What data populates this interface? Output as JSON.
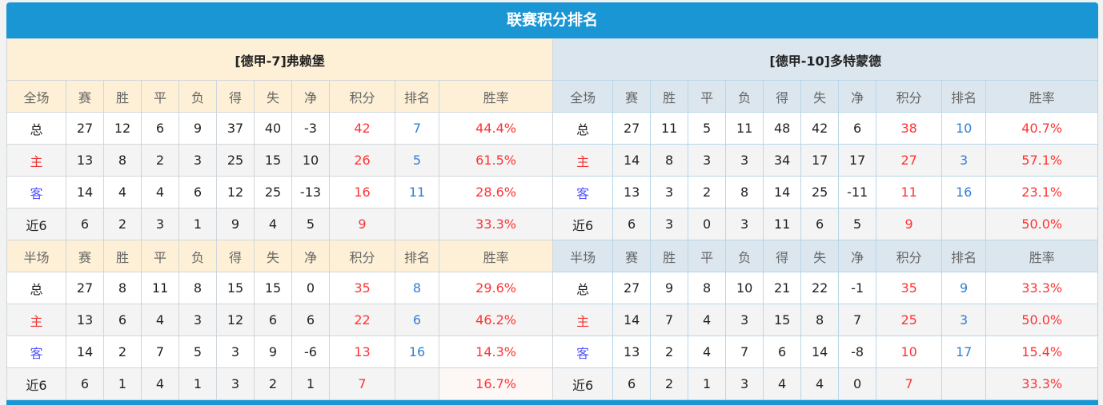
{
  "title": "联赛积分排名",
  "colors": {
    "header_bar": "#1a96d5",
    "home_header": "#fdf0d6",
    "away_header": "#dce6ee",
    "points": "#ff3333",
    "rank": "#2f7fd2"
  },
  "teams": [
    {
      "label": "[德甲-7]弗赖堡"
    },
    {
      "label": "[德甲-10]多特蒙德"
    }
  ],
  "columns_full": [
    "全场",
    "赛",
    "胜",
    "平",
    "负",
    "得",
    "失",
    "净",
    "积分",
    "排名",
    "胜率"
  ],
  "columns_half": [
    "半场",
    "赛",
    "胜",
    "平",
    "负",
    "得",
    "失",
    "净",
    "积分",
    "排名",
    "胜率"
  ],
  "full": {
    "home": [
      [
        "总",
        "27",
        "12",
        "6",
        "9",
        "37",
        "40",
        "-3",
        "42",
        "7",
        "44.4%"
      ],
      [
        "主",
        "13",
        "8",
        "2",
        "3",
        "25",
        "15",
        "10",
        "26",
        "5",
        "61.5%"
      ],
      [
        "客",
        "14",
        "4",
        "4",
        "6",
        "12",
        "25",
        "-13",
        "16",
        "11",
        "28.6%"
      ],
      [
        "近6",
        "6",
        "2",
        "3",
        "1",
        "9",
        "4",
        "5",
        "9",
        "",
        "33.3%"
      ]
    ],
    "away": [
      [
        "总",
        "27",
        "11",
        "5",
        "11",
        "48",
        "42",
        "6",
        "38",
        "10",
        "40.7%"
      ],
      [
        "主",
        "14",
        "8",
        "3",
        "3",
        "34",
        "17",
        "17",
        "27",
        "3",
        "57.1%"
      ],
      [
        "客",
        "13",
        "3",
        "2",
        "8",
        "14",
        "25",
        "-11",
        "11",
        "16",
        "23.1%"
      ],
      [
        "近6",
        "6",
        "3",
        "0",
        "3",
        "11",
        "6",
        "5",
        "9",
        "",
        "50.0%"
      ]
    ]
  },
  "half": {
    "home": [
      [
        "总",
        "27",
        "8",
        "11",
        "8",
        "15",
        "15",
        "0",
        "35",
        "8",
        "29.6%"
      ],
      [
        "主",
        "13",
        "6",
        "4",
        "3",
        "12",
        "6",
        "6",
        "22",
        "6",
        "46.2%"
      ],
      [
        "客",
        "14",
        "2",
        "7",
        "5",
        "3",
        "9",
        "-6",
        "13",
        "16",
        "14.3%"
      ],
      [
        "近6",
        "6",
        "1",
        "4",
        "1",
        "3",
        "2",
        "1",
        "7",
        "",
        "16.7%"
      ]
    ],
    "away": [
      [
        "总",
        "27",
        "9",
        "8",
        "10",
        "21",
        "22",
        "-1",
        "35",
        "9",
        "33.3%"
      ],
      [
        "主",
        "14",
        "7",
        "4",
        "3",
        "15",
        "8",
        "7",
        "25",
        "3",
        "50.0%"
      ],
      [
        "客",
        "13",
        "2",
        "4",
        "7",
        "6",
        "14",
        "-8",
        "10",
        "17",
        "15.4%"
      ],
      [
        "近6",
        "6",
        "2",
        "1",
        "3",
        "4",
        "4",
        "0",
        "7",
        "",
        "33.3%"
      ]
    ]
  }
}
